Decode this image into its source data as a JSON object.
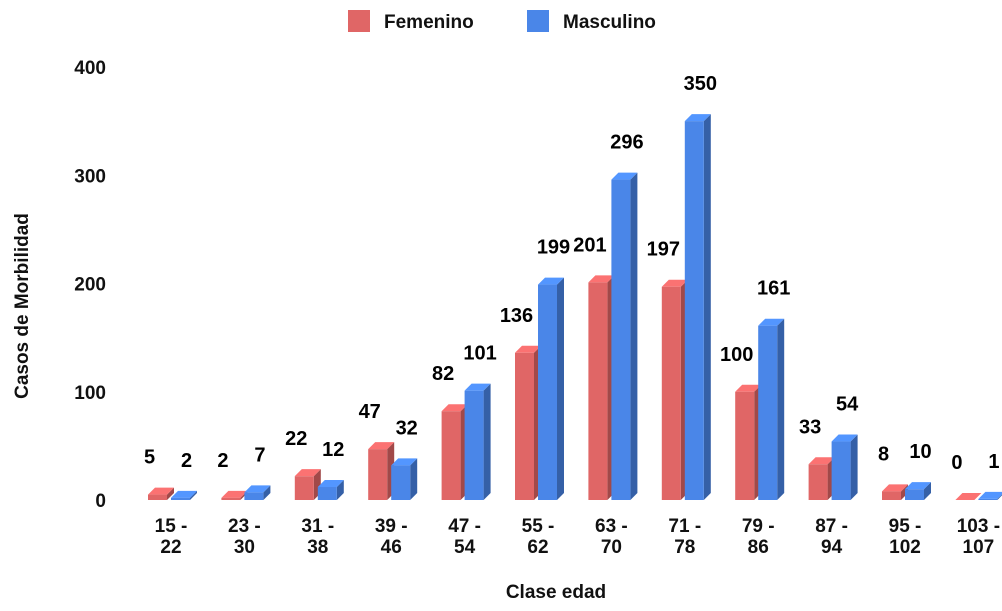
{
  "chart_data": {
    "type": "bar",
    "title": "",
    "xlabel": "Clase edad",
    "ylabel": "Casos de Morbilidad",
    "ylim": [
      0,
      400
    ],
    "yticks": [
      0,
      100,
      200,
      300,
      400
    ],
    "grid": false,
    "legend": "top-center",
    "categories": [
      [
        "15 -",
        "22"
      ],
      [
        "23 -",
        "30"
      ],
      [
        "31 -",
        "38"
      ],
      [
        "39 -",
        "46"
      ],
      [
        "47 -",
        "54"
      ],
      [
        "55 -",
        "62"
      ],
      [
        "63 -",
        "70"
      ],
      [
        "71 -",
        "78"
      ],
      [
        "79 -",
        "86"
      ],
      [
        "87 -",
        "94"
      ],
      [
        "95 -",
        "102"
      ],
      [
        "103 -",
        "107"
      ]
    ],
    "series": [
      {
        "name": "Femenino",
        "color": "#e06666",
        "values": [
          5,
          2,
          22,
          47,
          82,
          136,
          201,
          197,
          100,
          33,
          8,
          0
        ]
      },
      {
        "name": "Masculino",
        "color": "#4a86e8",
        "values": [
          2,
          7,
          12,
          32,
          101,
          199,
          296,
          350,
          161,
          54,
          10,
          1
        ]
      }
    ]
  }
}
